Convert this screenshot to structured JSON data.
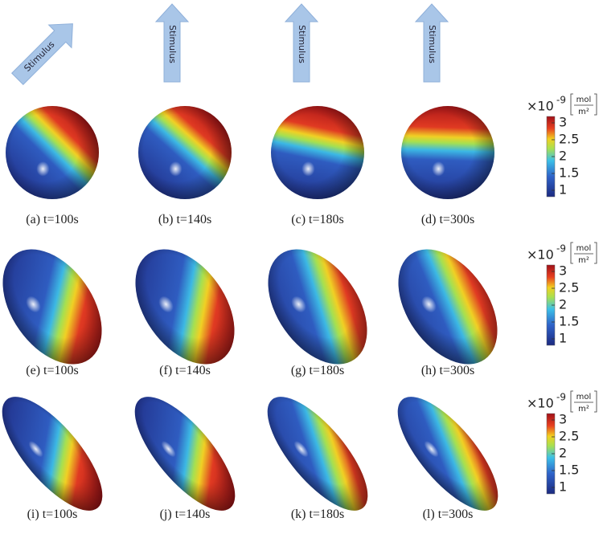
{
  "arrows": [
    "Stimulus",
    "Stimulus",
    "Stimulus",
    "Stimulus"
  ],
  "rows": [
    {
      "captions": [
        "(a) t=100s",
        "(b) t=140s",
        "(c) t=180s",
        "(d) t=300s"
      ]
    },
    {
      "captions": [
        "(e) t=100s",
        "(f) t=140s",
        "(g) t=180s",
        "(h) t=300s"
      ]
    },
    {
      "captions": [
        "(i) t=100s",
        "(j) t=140s",
        "(k) t=180s",
        "(l) t=300s"
      ]
    }
  ],
  "colorbar": {
    "scale": "×10",
    "exponent": "-9",
    "unit_num": "mol",
    "unit_den": "m²",
    "ticks": [
      "3",
      "2.5",
      "2",
      "1.5",
      "1"
    ]
  }
}
